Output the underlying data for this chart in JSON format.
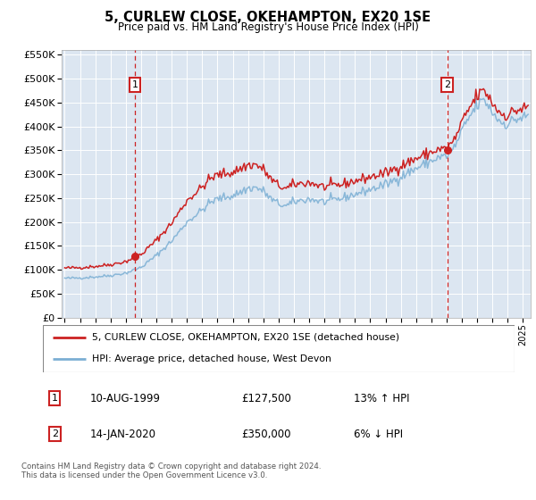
{
  "title": "5, CURLEW CLOSE, OKEHAMPTON, EX20 1SE",
  "subtitle": "Price paid vs. HM Land Registry's House Price Index (HPI)",
  "legend_line1": "5, CURLEW CLOSE, OKEHAMPTON, EX20 1SE (detached house)",
  "legend_line2": "HPI: Average price, detached house, West Devon",
  "annotation1_date": "10-AUG-1999",
  "annotation1_price": "£127,500",
  "annotation1_hpi": "13% ↑ HPI",
  "annotation2_date": "14-JAN-2020",
  "annotation2_price": "£350,000",
  "annotation2_hpi": "6% ↓ HPI",
  "footer": "Contains HM Land Registry data © Crown copyright and database right 2024.\nThis data is licensed under the Open Government Licence v3.0.",
  "hpi_color": "#7bafd4",
  "price_color": "#cc2222",
  "vline_color": "#cc2222",
  "bg_color": "#dce6f1",
  "ylim": [
    0,
    560000
  ],
  "yticks": [
    0,
    50000,
    100000,
    150000,
    200000,
    250000,
    300000,
    350000,
    400000,
    450000,
    500000,
    550000
  ],
  "sale1_x": 1999.6,
  "sale1_y": 127500,
  "sale2_x": 2020.04,
  "sale2_y": 350000,
  "xmin": 1994.8,
  "xmax": 2025.5
}
